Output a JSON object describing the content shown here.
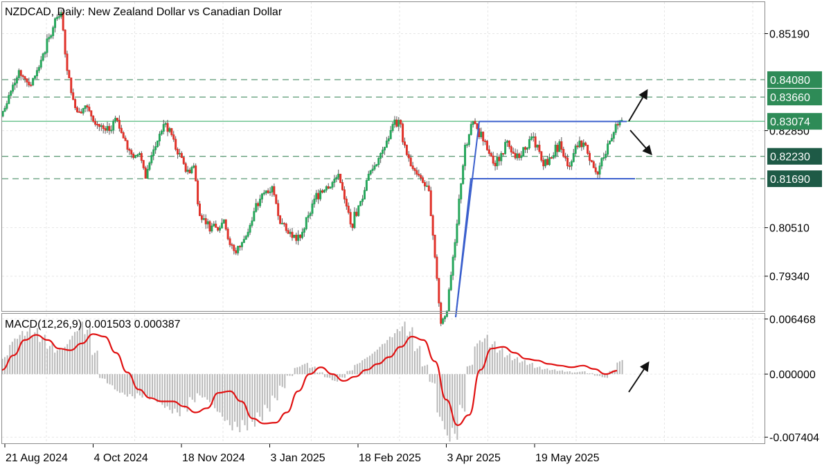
{
  "header": {
    "title": "NZDCAD, Daily:  New Zealand Dollar vs Canadian Dollar"
  },
  "indicator": {
    "label": "MACD(12,26,9) 0.001503 0.000387"
  },
  "colors": {
    "bull": "#26a65b",
    "bear": "#e0322a",
    "level_line": "#2e7d4f",
    "current_line": "#26a65b",
    "range_line": "#3a5fcd",
    "badge_green": "#2e8b57",
    "badge_dark": "#1e5a46",
    "macd_line": "#e01010",
    "histogram": "#b8b8b8",
    "grid": "#e6e6e6",
    "frame": "#8a8a8a",
    "arrow": "#111111"
  },
  "chart_data": [
    {
      "type": "candlestick",
      "symbol": "NZDCAD",
      "timeframe": "Daily",
      "y_ticks": [
        "0.85190",
        "0.82850",
        "0.80510",
        "0.79340"
      ],
      "y_range": [
        0.785,
        0.8595
      ],
      "x_tick_labels": [
        "21 Aug 2024",
        "4 Oct 2024",
        "18 Nov 2024",
        "3 Jan 2025",
        "18 Feb 2025",
        "3 Apr 2025",
        "19 May 2025"
      ],
      "price_levels": [
        {
          "value": 0.8408,
          "label": "0.84080",
          "style": "dashed",
          "badge": "green"
        },
        {
          "value": 0.8366,
          "label": "0.83660",
          "style": "dashed",
          "badge": "green"
        },
        {
          "value": 0.83074,
          "label": "0.83074",
          "style": "solid",
          "badge": "green"
        },
        {
          "value": 0.8223,
          "label": "0.82230",
          "style": "dashed",
          "badge": "dark"
        },
        {
          "value": 0.8169,
          "label": "0.81690",
          "style": "dashed",
          "badge": "dark"
        }
      ],
      "close_series": [
        0.835,
        0.8395,
        0.843,
        0.841,
        0.8395,
        0.843,
        0.847,
        0.851,
        0.8555,
        0.857,
        0.843,
        0.836,
        0.833,
        0.8345,
        0.832,
        0.83,
        0.829,
        0.8285,
        0.8315,
        0.828,
        0.824,
        0.822,
        0.823,
        0.817,
        0.8225,
        0.826,
        0.83,
        0.829,
        0.824,
        0.822,
        0.819,
        0.82,
        0.808,
        0.806,
        0.8055,
        0.8045,
        0.807,
        0.801,
        0.799,
        0.8015,
        0.804,
        0.809,
        0.812,
        0.814,
        0.815,
        0.808,
        0.806,
        0.804,
        0.802,
        0.804,
        0.808,
        0.812,
        0.814,
        0.815,
        0.816,
        0.818,
        0.812,
        0.806,
        0.808,
        0.812,
        0.818,
        0.82,
        0.823,
        0.826,
        0.83,
        0.831,
        0.825,
        0.82,
        0.818,
        0.816,
        0.814,
        0.798,
        0.782,
        0.785,
        0.798,
        0.812,
        0.825,
        0.83,
        0.829,
        0.826,
        0.823,
        0.82,
        0.823,
        0.826,
        0.823,
        0.822,
        0.824,
        0.827,
        0.825,
        0.82,
        0.822,
        0.825,
        0.824,
        0.82,
        0.823,
        0.826,
        0.825,
        0.821,
        0.818,
        0.822,
        0.826,
        0.83,
        0.831
      ],
      "range_box": {
        "top": 0.8307,
        "bottom": 0.8169,
        "ramp_from": 0.7835
      },
      "arrows": [
        "up",
        "down"
      ]
    },
    {
      "type": "macd",
      "params": "12,26,9",
      "y_ticks": [
        "0.006468",
        "0.000000",
        "-0.007404"
      ],
      "y_range": [
        -0.0082,
        0.007
      ],
      "histogram": [
        0.002,
        0.0038,
        0.0046,
        0.005,
        0.0049,
        0.0042,
        0.0033,
        0.0028,
        0.0032,
        0.0045,
        0.0056,
        0.0052,
        0.0025,
        -0.0005,
        -0.0012,
        -0.002,
        -0.0024,
        -0.0026,
        -0.0025,
        -0.0027,
        -0.003,
        -0.0036,
        -0.0042,
        -0.0045,
        -0.004,
        -0.003,
        -0.0025,
        -0.003,
        -0.004,
        -0.005,
        -0.006,
        -0.0062,
        -0.006,
        -0.0056,
        -0.005,
        -0.004,
        -0.0028,
        -0.0015,
        -0.0002,
        0.0008,
        0.0012,
        0.0008,
        0.0002,
        -0.0004,
        -0.0008,
        -0.0004,
        0.0004,
        0.0012,
        0.0018,
        0.0024,
        0.0032,
        0.004,
        0.0048,
        0.0056,
        0.005,
        0.003,
        0.001,
        -0.001,
        -0.005,
        -0.0072,
        -0.007,
        -0.004,
        0.001,
        0.0036,
        0.0042,
        0.0035,
        0.0028,
        0.0022,
        0.0018,
        0.0015,
        0.0012,
        0.0008,
        0.0006,
        0.0005,
        0.0004,
        0.0003,
        0.0002,
        0.0003,
        0.0001,
        -0.0002,
        -0.0004,
        0.0004,
        0.0015
      ],
      "signal": [
        0.0005,
        0.0022,
        0.004,
        0.0046,
        0.004,
        0.003,
        0.0028,
        0.0036,
        0.0047,
        0.0044,
        0.0025,
        0.0002,
        -0.0018,
        -0.0028,
        -0.0032,
        -0.0032,
        -0.0038,
        -0.0045,
        -0.004,
        -0.0022,
        -0.002,
        -0.0032,
        -0.0052,
        -0.0058,
        -0.0057,
        -0.0045,
        -0.002,
        0.0,
        0.0008,
        0.0,
        -0.0008,
        -0.0003,
        0.0005,
        0.0012,
        0.002,
        0.0032,
        0.0044,
        0.004,
        0.0015,
        -0.003,
        -0.006,
        -0.0048,
        0.0005,
        0.003,
        0.0032,
        0.0025,
        0.0018,
        0.0016,
        0.0012,
        0.001,
        0.0008,
        0.001,
        0.0006,
        0.0,
        0.0004
      ]
    }
  ]
}
